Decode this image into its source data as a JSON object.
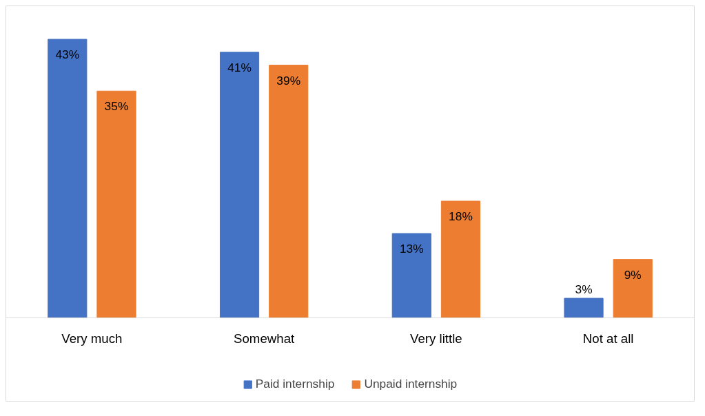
{
  "chart_data": {
    "type": "bar",
    "categories": [
      "Very much",
      "Somewhat",
      "Very little",
      "Not at all"
    ],
    "series": [
      {
        "name": "Paid internship",
        "color": "#4472c4",
        "values": [
          43,
          41,
          13,
          3
        ],
        "value_labels": [
          "43%",
          "41%",
          "13%",
          "3%"
        ]
      },
      {
        "name": "Unpaid internship",
        "color": "#ed7d31",
        "values": [
          35,
          39,
          18,
          9
        ],
        "value_labels": [
          "35%",
          "39%",
          "18%",
          "9%"
        ]
      }
    ],
    "legend": "bottom",
    "grid": false
  }
}
